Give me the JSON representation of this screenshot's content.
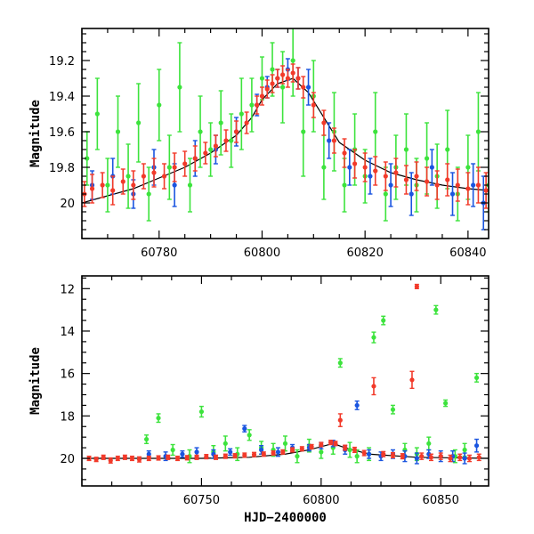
{
  "chart_data": [
    {
      "type": "scatter",
      "panel": "top",
      "title": "",
      "xlabel": "",
      "ylabel": "Magnitude",
      "xlim": [
        60765,
        60844
      ],
      "ylim": [
        20.2,
        19.02
      ],
      "y_inverted": true,
      "xticks": [
        60780,
        60800,
        60820,
        60840
      ],
      "yticks": [
        19.2,
        19.4,
        19.6,
        19.8,
        20
      ],
      "ytick_labels": [
        "19.2",
        "19.4",
        "19.6",
        "19.8",
        "20"
      ],
      "model_curve": {
        "color": "#000000",
        "x": [
          60765,
          60770,
          60775,
          60780,
          60785,
          60790,
          60795,
          60798,
          60800,
          60803,
          60806,
          60809,
          60812,
          60815,
          60820,
          60825,
          60830,
          60835,
          60840,
          60844
        ],
        "y": [
          20.0,
          19.96,
          19.92,
          19.86,
          19.8,
          19.72,
          19.62,
          19.52,
          19.42,
          19.33,
          19.3,
          19.38,
          19.52,
          19.66,
          19.76,
          19.83,
          19.87,
          19.9,
          19.92,
          19.93
        ]
      },
      "series": [
        {
          "color": "#3de33d",
          "filter": "green",
          "x": [
            60766,
            60768,
            60770,
            60772,
            60774,
            60776,
            60778,
            60780,
            60782,
            60784,
            60786,
            60788,
            60790,
            60792,
            60794,
            60796,
            60798,
            60800,
            60802,
            60804,
            60806,
            60808,
            60810,
            60812,
            60814,
            60816,
            60818,
            60820,
            60822,
            60824,
            60826,
            60828,
            60830,
            60832,
            60834,
            60836,
            60838,
            60840,
            60842,
            60844
          ],
          "y": [
            19.75,
            19.5,
            19.9,
            19.6,
            19.85,
            19.55,
            19.95,
            19.45,
            19.8,
            19.35,
            19.9,
            19.6,
            19.7,
            19.55,
            19.65,
            19.5,
            19.45,
            19.3,
            19.25,
            19.35,
            19.2,
            19.6,
            19.4,
            19.8,
            19.6,
            19.9,
            19.7,
            19.85,
            19.6,
            19.95,
            19.8,
            19.7,
            19.9,
            19.75,
            19.85,
            19.7,
            19.95,
            19.8,
            19.6,
            19.9
          ],
          "yerr": [
            0.15,
            0.2,
            0.15,
            0.2,
            0.18,
            0.22,
            0.15,
            0.2,
            0.18,
            0.25,
            0.15,
            0.2,
            0.15,
            0.18,
            0.15,
            0.2,
            0.15,
            0.12,
            0.15,
            0.2,
            0.2,
            0.25,
            0.2,
            0.18,
            0.22,
            0.15,
            0.2,
            0.15,
            0.22,
            0.15,
            0.18,
            0.2,
            0.15,
            0.2,
            0.18,
            0.22,
            0.15,
            0.18,
            0.22,
            0.15
          ]
        },
        {
          "color": "#1a55e0",
          "filter": "blue",
          "x": [
            60767,
            60771,
            60775,
            60779,
            60783,
            60787,
            60791,
            60795,
            60799,
            60801,
            60803,
            60805,
            60807,
            60809,
            60813,
            60817,
            60821,
            60825,
            60829,
            60833,
            60837,
            60841,
            60843
          ],
          "y": [
            19.9,
            19.85,
            19.95,
            19.8,
            19.9,
            19.75,
            19.7,
            19.6,
            19.45,
            19.35,
            19.3,
            19.25,
            19.3,
            19.35,
            19.65,
            19.8,
            19.85,
            19.9,
            19.95,
            19.8,
            19.95,
            19.9,
            20.0
          ],
          "yerr": [
            0.08,
            0.1,
            0.08,
            0.1,
            0.12,
            0.1,
            0.08,
            0.08,
            0.06,
            0.06,
            0.05,
            0.06,
            0.06,
            0.1,
            0.1,
            0.1,
            0.1,
            0.12,
            0.12,
            0.1,
            0.12,
            0.12,
            0.15
          ]
        },
        {
          "color": "#f23a2a",
          "filter": "red",
          "x": [
            60765.5,
            60767,
            60769,
            60771,
            60773,
            60775,
            60777,
            60779,
            60781,
            60783,
            60785,
            60787,
            60789,
            60791,
            60793,
            60795,
            60797,
            60799,
            60800,
            60801,
            60802,
            60803,
            60804,
            60805,
            60806,
            60807,
            60808,
            60810,
            60812,
            60814,
            60816,
            60818,
            60820,
            60822,
            60824,
            60826,
            60828,
            60830,
            60832,
            60834,
            60836,
            60838,
            60840,
            60842,
            60843.5
          ],
          "y": [
            19.95,
            19.92,
            19.9,
            19.93,
            19.88,
            19.9,
            19.85,
            19.83,
            19.85,
            19.8,
            19.78,
            19.75,
            19.72,
            19.68,
            19.65,
            19.6,
            19.55,
            19.45,
            19.4,
            19.36,
            19.33,
            19.3,
            19.28,
            19.3,
            19.27,
            19.3,
            19.35,
            19.45,
            19.55,
            19.65,
            19.72,
            19.78,
            19.8,
            19.82,
            19.85,
            19.83,
            19.87,
            19.85,
            19.88,
            19.9,
            19.87,
            19.9,
            19.92,
            19.9,
            19.93
          ],
          "yerr": [
            0.07,
            0.08,
            0.07,
            0.08,
            0.07,
            0.08,
            0.07,
            0.08,
            0.07,
            0.08,
            0.07,
            0.07,
            0.06,
            0.06,
            0.06,
            0.06,
            0.06,
            0.05,
            0.05,
            0.05,
            0.05,
            0.05,
            0.05,
            0.05,
            0.05,
            0.06,
            0.06,
            0.07,
            0.07,
            0.07,
            0.08,
            0.08,
            0.08,
            0.08,
            0.08,
            0.08,
            0.08,
            0.08,
            0.08,
            0.08,
            0.09,
            0.09,
            0.09,
            0.1,
            0.1
          ]
        }
      ]
    },
    {
      "type": "scatter",
      "panel": "bottom",
      "title": "",
      "xlabel": "HJD−2400000",
      "ylabel": "Magnitude",
      "xlim": [
        60700,
        60870
      ],
      "ylim": [
        21.3,
        11.4
      ],
      "y_inverted": true,
      "xticks": [
        60750,
        60800,
        60850
      ],
      "yticks": [
        12,
        14,
        16,
        18,
        20
      ],
      "ytick_labels": [
        "12",
        "14",
        "16",
        "18",
        "20"
      ],
      "model_curve": {
        "color": "#000000",
        "x": [
          60700,
          60725,
          60750,
          60770,
          60785,
          60795,
          60805,
          60810,
          60820,
          60840,
          60870
        ],
        "y": [
          20.0,
          20.0,
          20.0,
          19.95,
          19.8,
          19.6,
          19.3,
          19.5,
          19.8,
          19.95,
          20.0
        ]
      },
      "series": [
        {
          "color": "#3de33d",
          "filter": "green",
          "x": [
            60727,
            60732,
            60738,
            60745,
            60750,
            60755,
            60760,
            60765,
            60770,
            60775,
            60780,
            60785,
            60790,
            60795,
            60800,
            60805,
            60808,
            60812,
            60815,
            60820,
            60822,
            60826,
            60830,
            60835,
            60840,
            60845,
            60848,
            60852,
            60856,
            60860,
            60865
          ],
          "y": [
            19.1,
            18.1,
            19.6,
            19.9,
            17.8,
            19.7,
            19.3,
            19.8,
            18.9,
            19.5,
            19.6,
            19.3,
            19.9,
            19.4,
            19.7,
            19.5,
            15.5,
            19.6,
            19.9,
            19.8,
            14.3,
            13.5,
            17.7,
            19.6,
            19.8,
            19.3,
            13.0,
            17.4,
            19.9,
            19.6,
            16.2
          ],
          "yerr": [
            0.2,
            0.2,
            0.25,
            0.3,
            0.25,
            0.3,
            0.35,
            0.3,
            0.25,
            0.3,
            0.3,
            0.35,
            0.3,
            0.3,
            0.3,
            0.3,
            0.2,
            0.35,
            0.3,
            0.3,
            0.25,
            0.2,
            0.2,
            0.3,
            0.3,
            0.3,
            0.2,
            0.15,
            0.3,
            0.3,
            0.2
          ]
        },
        {
          "color": "#1a55e0",
          "filter": "blue",
          "x": [
            60728,
            60735,
            60742,
            60748,
            60755,
            60762,
            60768,
            60775,
            60782,
            60788,
            60795,
            60800,
            60805,
            60810,
            60815,
            60820,
            60825,
            60830,
            60835,
            60840,
            60845,
            60850,
            60855,
            60860,
            60865
          ],
          "y": [
            19.8,
            19.9,
            19.8,
            19.7,
            19.8,
            19.7,
            18.6,
            19.6,
            19.7,
            19.5,
            19.5,
            19.4,
            19.3,
            19.6,
            17.5,
            19.8,
            19.9,
            19.8,
            19.9,
            20.0,
            19.8,
            19.9,
            19.9,
            20.0,
            19.4
          ],
          "yerr": [
            0.15,
            0.2,
            0.15,
            0.2,
            0.2,
            0.15,
            0.15,
            0.2,
            0.2,
            0.15,
            0.15,
            0.15,
            0.15,
            0.2,
            0.2,
            0.2,
            0.2,
            0.2,
            0.25,
            0.25,
            0.2,
            0.25,
            0.25,
            0.25,
            0.3
          ]
        },
        {
          "color": "#f23a2a",
          "filter": "red",
          "x": [
            60703,
            60706,
            60709,
            60712,
            60715,
            60718,
            60721,
            60724,
            60728,
            60732,
            60736,
            60740,
            60744,
            60748,
            60752,
            60756,
            60760,
            60764,
            60768,
            60772,
            60776,
            60780,
            60784,
            60788,
            60792,
            60796,
            60800,
            60804,
            60806,
            60808,
            60810,
            60814,
            60818,
            60822,
            60826,
            60830,
            60834,
            60838,
            60840,
            60842,
            60846,
            60850,
            60854,
            60858,
            60862,
            60866
          ],
          "y": [
            20.0,
            20.05,
            19.95,
            20.1,
            20.0,
            19.95,
            20.0,
            20.05,
            20.0,
            19.98,
            19.95,
            20.0,
            19.97,
            19.95,
            19.92,
            19.95,
            19.9,
            19.88,
            19.85,
            19.82,
            19.8,
            19.75,
            19.7,
            19.6,
            19.55,
            19.45,
            19.35,
            19.25,
            19.3,
            18.2,
            19.5,
            19.6,
            19.75,
            16.6,
            19.8,
            19.85,
            19.9,
            16.3,
            11.9,
            19.9,
            19.95,
            19.9,
            20.0,
            19.95,
            20.0,
            19.95
          ],
          "yerr": [
            0.1,
            0.1,
            0.1,
            0.12,
            0.1,
            0.1,
            0.1,
            0.12,
            0.1,
            0.1,
            0.1,
            0.1,
            0.1,
            0.1,
            0.1,
            0.1,
            0.1,
            0.1,
            0.1,
            0.1,
            0.1,
            0.1,
            0.1,
            0.1,
            0.1,
            0.1,
            0.1,
            0.1,
            0.1,
            0.3,
            0.12,
            0.12,
            0.12,
            0.4,
            0.12,
            0.12,
            0.12,
            0.4,
            0.1,
            0.15,
            0.15,
            0.15,
            0.15,
            0.15,
            0.15,
            0.15
          ]
        }
      ]
    }
  ]
}
